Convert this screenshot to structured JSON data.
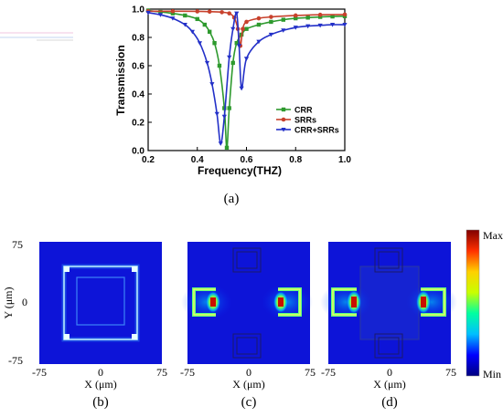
{
  "chart_data": [
    {
      "type": "line",
      "panel_label": "(a)",
      "xlabel": "Frequency(THZ)",
      "ylabel": "Transmission",
      "xlim": [
        0.2,
        1.0
      ],
      "ylim": [
        0.0,
        1.0
      ],
      "x_ticks": [
        "0.2",
        "0.4",
        "0.6",
        "0.8",
        "1.0"
      ],
      "y_ticks": [
        "0.0",
        "0.2",
        "0.4",
        "0.6",
        "0.8",
        "1.0"
      ],
      "legend_position": "bottom-right",
      "grid": false,
      "series": [
        {
          "name": "CRR",
          "color": "#2e9a2e",
          "marker": "square",
          "x": [
            0.2,
            0.25,
            0.3,
            0.35,
            0.4,
            0.43,
            0.45,
            0.47,
            0.49,
            0.51,
            0.52,
            0.53,
            0.545,
            0.56,
            0.58,
            0.6,
            0.65,
            0.7,
            0.75,
            0.8,
            0.85,
            0.9,
            0.95,
            1.0
          ],
          "y": [
            0.99,
            0.98,
            0.97,
            0.955,
            0.93,
            0.89,
            0.84,
            0.76,
            0.6,
            0.3,
            0.02,
            0.3,
            0.62,
            0.76,
            0.82,
            0.86,
            0.89,
            0.91,
            0.925,
            0.935,
            0.94,
            0.945,
            0.948,
            0.95
          ]
        },
        {
          "name": "SRRs",
          "color": "#c8412c",
          "marker": "circle",
          "x": [
            0.2,
            0.3,
            0.4,
            0.45,
            0.5,
            0.53,
            0.55,
            0.565,
            0.575,
            0.585,
            0.6,
            0.65,
            0.7,
            0.8,
            0.9,
            1.0
          ],
          "y": [
            0.985,
            0.985,
            0.984,
            0.982,
            0.978,
            0.97,
            0.94,
            0.86,
            0.74,
            0.86,
            0.91,
            0.935,
            0.945,
            0.955,
            0.96,
            0.962
          ]
        },
        {
          "name": "CRR+SRRs",
          "color": "#2330c8",
          "marker": "triangle",
          "x": [
            0.2,
            0.25,
            0.3,
            0.35,
            0.38,
            0.41,
            0.44,
            0.46,
            0.48,
            0.495,
            0.51,
            0.53,
            0.545,
            0.56,
            0.57,
            0.58,
            0.6,
            0.65,
            0.7,
            0.75,
            0.8,
            0.85,
            0.9,
            0.95,
            1.0
          ],
          "y": [
            0.975,
            0.96,
            0.935,
            0.89,
            0.84,
            0.76,
            0.62,
            0.47,
            0.26,
            0.05,
            0.24,
            0.66,
            0.86,
            0.97,
            0.74,
            0.44,
            0.65,
            0.77,
            0.82,
            0.85,
            0.87,
            0.88,
            0.885,
            0.89,
            0.89
          ]
        }
      ]
    },
    {
      "type": "heatmap",
      "x_label": "X (μm)",
      "y_label": "Y (μm)",
      "x_ticks": [
        "-75",
        "0",
        "75"
      ],
      "y_ticks": [
        "75",
        "0",
        "-75"
      ],
      "panels": [
        {
          "label": "(b)"
        },
        {
          "label": "(c)"
        },
        {
          "label": "(d)"
        }
      ],
      "colorbar": {
        "max_label": "Max",
        "min_label": "Min",
        "colors": [
          "#000080",
          "#0000ff",
          "#00bfff",
          "#00ffa0",
          "#c8ff00",
          "#ffd000",
          "#ff3000",
          "#800000"
        ]
      }
    }
  ]
}
